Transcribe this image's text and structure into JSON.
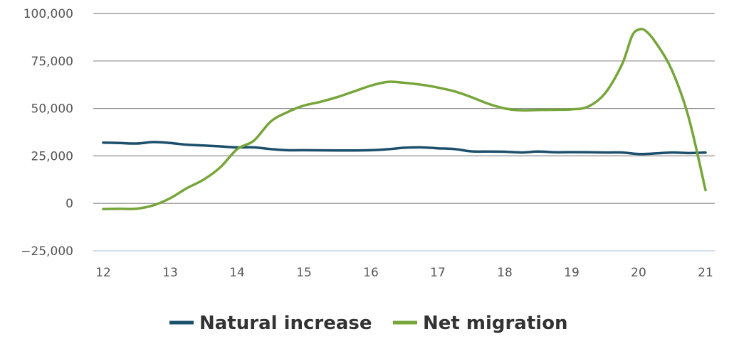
{
  "chart_data": {
    "type": "line",
    "title": "",
    "xlabel": "",
    "ylabel": "",
    "xlim": [
      12,
      21
    ],
    "ylim": [
      -25000,
      100000
    ],
    "x_ticks": [
      "12",
      "13",
      "14",
      "15",
      "16",
      "17",
      "18",
      "19",
      "20",
      "21"
    ],
    "y_ticks": [
      "100,000",
      "75,000",
      "50,000",
      "25,000",
      "0",
      "−25,000"
    ],
    "y_tick_values": [
      100000,
      75000,
      50000,
      25000,
      0,
      -25000
    ],
    "x_tick_values": [
      12,
      13,
      14,
      15,
      16,
      17,
      18,
      19,
      20,
      21
    ],
    "grid": "horizontal",
    "legend_position": "bottom",
    "series": [
      {
        "name": "Natural increase",
        "color": "#1b4f6b",
        "points": [
          [
            12,
            32000
          ],
          [
            12.25,
            31800
          ],
          [
            12.5,
            31500
          ],
          [
            12.75,
            32300
          ],
          [
            13,
            31800
          ],
          [
            13.25,
            30900
          ],
          [
            13.5,
            30500
          ],
          [
            13.75,
            30000
          ],
          [
            14,
            29500
          ],
          [
            14.25,
            29500
          ],
          [
            14.5,
            28600
          ],
          [
            14.75,
            28000
          ],
          [
            15,
            28000
          ],
          [
            15.5,
            27900
          ],
          [
            16,
            28000
          ],
          [
            16.25,
            28500
          ],
          [
            16.5,
            29300
          ],
          [
            16.75,
            29500
          ],
          [
            17,
            29000
          ],
          [
            17.25,
            28600
          ],
          [
            17.5,
            27400
          ],
          [
            17.75,
            27300
          ],
          [
            18,
            27200
          ],
          [
            18.25,
            26800
          ],
          [
            18.5,
            27300
          ],
          [
            18.75,
            26900
          ],
          [
            19,
            27000
          ],
          [
            19.5,
            26800
          ],
          [
            19.75,
            26800
          ],
          [
            20,
            26000
          ],
          [
            20.25,
            26300
          ],
          [
            20.5,
            26800
          ],
          [
            20.75,
            26500
          ],
          [
            21,
            26800
          ]
        ]
      },
      {
        "name": "Net migration",
        "color": "#76a53a",
        "points": [
          [
            12,
            -3000
          ],
          [
            12.25,
            -2900
          ],
          [
            12.5,
            -2800
          ],
          [
            12.75,
            -1000
          ],
          [
            13,
            2700
          ],
          [
            13.25,
            8000
          ],
          [
            13.5,
            12500
          ],
          [
            13.75,
            19000
          ],
          [
            14,
            28500
          ],
          [
            14.25,
            33000
          ],
          [
            14.5,
            43000
          ],
          [
            14.75,
            48000
          ],
          [
            15,
            51500
          ],
          [
            15.25,
            53500
          ],
          [
            15.5,
            56000
          ],
          [
            15.75,
            59000
          ],
          [
            16,
            62000
          ],
          [
            16.25,
            64000
          ],
          [
            16.5,
            63500
          ],
          [
            16.75,
            62500
          ],
          [
            17,
            61000
          ],
          [
            17.25,
            59000
          ],
          [
            17.5,
            56000
          ],
          [
            17.75,
            52500
          ],
          [
            18,
            50000
          ],
          [
            18.25,
            49000
          ],
          [
            18.5,
            49200
          ],
          [
            18.75,
            49300
          ],
          [
            19,
            49500
          ],
          [
            19.25,
            51000
          ],
          [
            19.5,
            58000
          ],
          [
            19.75,
            73000
          ],
          [
            19.9,
            88000
          ],
          [
            20,
            91500
          ],
          [
            20.1,
            91000
          ],
          [
            20.25,
            85000
          ],
          [
            20.5,
            70000
          ],
          [
            20.75,
            45000
          ],
          [
            21,
            7000
          ]
        ]
      }
    ]
  }
}
